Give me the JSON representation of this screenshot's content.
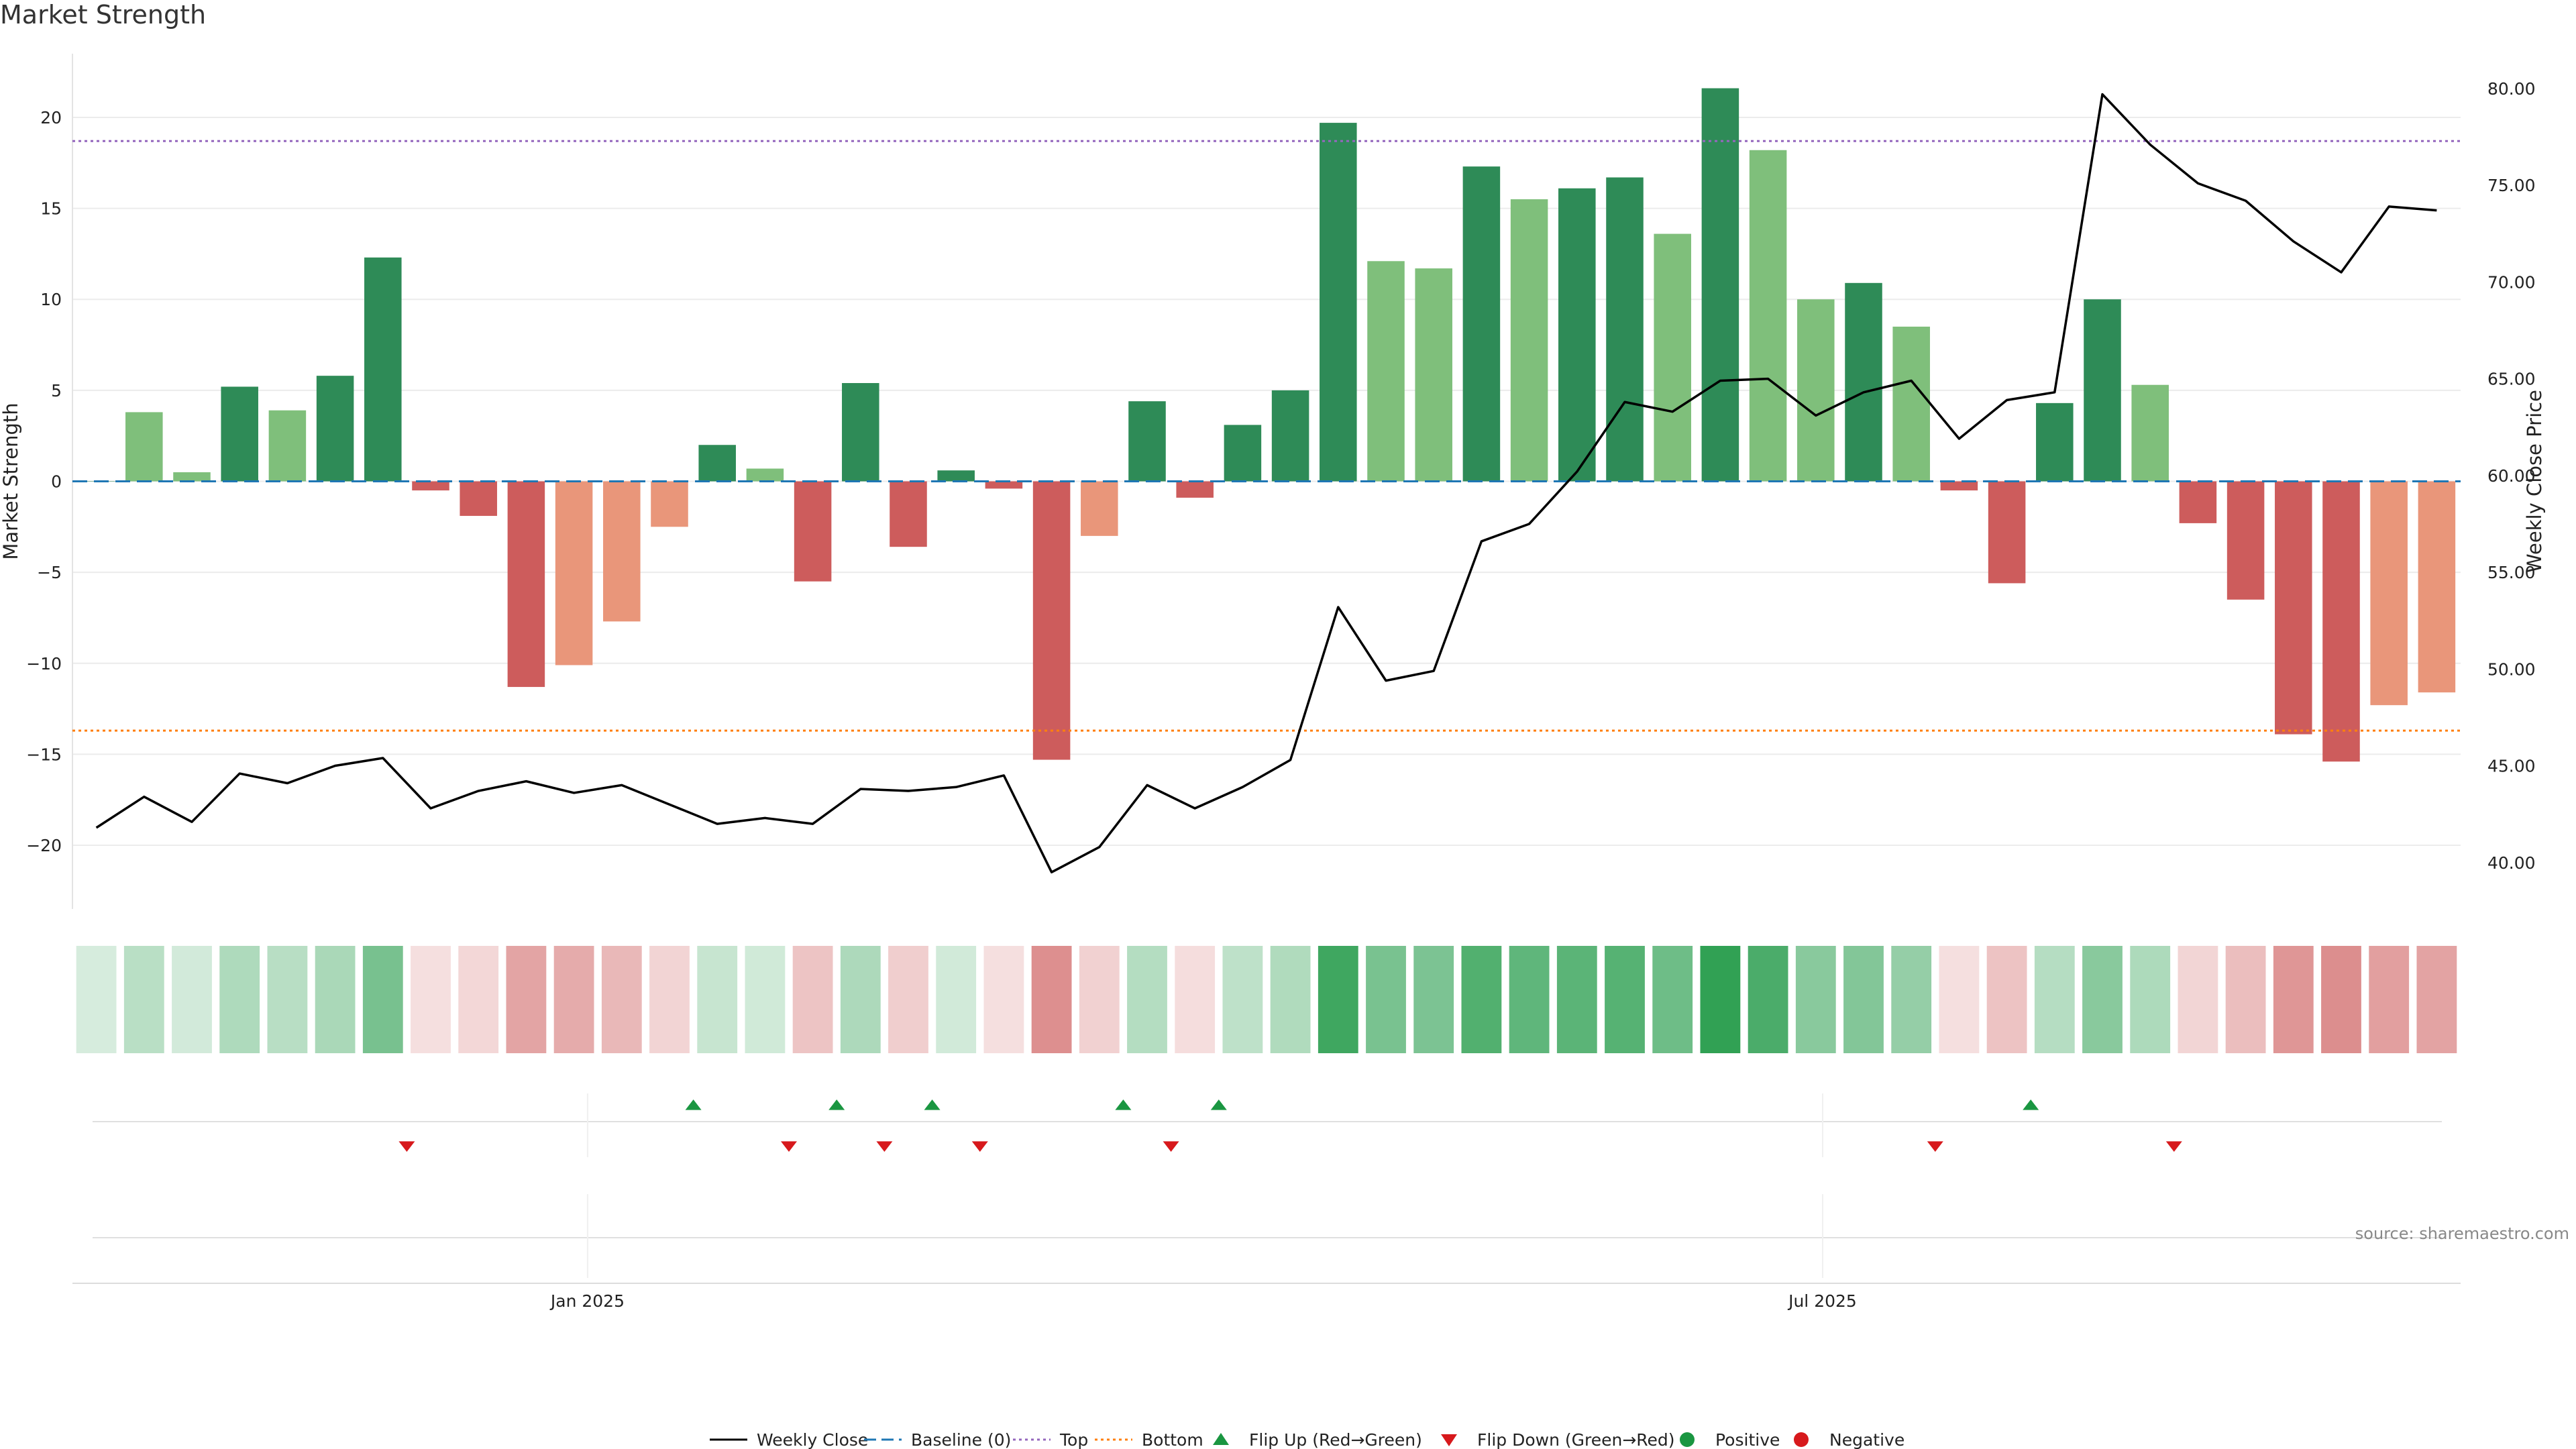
{
  "title": "Market Strength",
  "source_note": "source: sharemaestro.com",
  "colors": {
    "strong_pos": "#2e8b57",
    "weak_pos": "#7fbf7b",
    "strong_neg": "#cd5c5c",
    "weak_neg": "#e9967a",
    "close_line": "#000000",
    "baseline": "#1f77b4",
    "top": "#9467bd",
    "bottom": "#ff7f0e",
    "flip_up": "#1a9641",
    "flip_down": "#d7191c",
    "grid": "#ececec"
  },
  "legend": [
    {
      "key": "close",
      "label": "Weekly Close"
    },
    {
      "key": "baseline",
      "label": "Baseline (0)"
    },
    {
      "key": "top",
      "label": "Top"
    },
    {
      "key": "bottom",
      "label": "Bottom"
    },
    {
      "key": "flip_up",
      "label": "Flip Up (Red→Green)"
    },
    {
      "key": "flip_down",
      "label": "Flip Down (Green→Red)"
    },
    {
      "key": "positive",
      "label": "Positive"
    },
    {
      "key": "negative",
      "label": "Negative"
    }
  ],
  "chart_data": {
    "type": "bar",
    "title": "Market Strength",
    "ylabel": "Market Strength",
    "y2label": "Weekly Close Price",
    "ylim": [
      -23.5,
      23.5
    ],
    "y2lim": [
      37.6,
      81.8
    ],
    "yticks": [
      -20,
      -15,
      -10,
      -5,
      0,
      5,
      10,
      15,
      20
    ],
    "y2ticks": [
      "40.00",
      "45.00",
      "50.00",
      "55.00",
      "60.00",
      "65.00",
      "70.00",
      "75.00",
      "80.00"
    ],
    "x_start": "2024-10-21",
    "x_tick_labels": [
      "Jan 2025",
      "Jul 2025"
    ],
    "top_threshold": 18.7,
    "bottom_threshold": -13.7,
    "baseline": 0,
    "grid": true,
    "legend_position": "bottom-center",
    "series": [
      {
        "name": "Market Strength",
        "type": "bar",
        "values": [
          0,
          3.8,
          0.5,
          5.2,
          3.9,
          5.8,
          12.3,
          -0.5,
          -1.9,
          -11.3,
          -10.1,
          -7.7,
          -2.5,
          2.0,
          0.7,
          -5.5,
          5.4,
          -3.6,
          0.6,
          -0.4,
          -15.3,
          -3.0,
          4.4,
          -0.9,
          3.1,
          5.0,
          19.7,
          12.1,
          11.7,
          17.3,
          15.5,
          16.1,
          16.7,
          13.6,
          21.6,
          18.2,
          10.0,
          10.9,
          8.5,
          -0.5,
          -5.6,
          4.3,
          10.0,
          5.3,
          -2.3,
          -6.5,
          -13.9,
          -15.4,
          -12.3,
          -11.6
        ]
      },
      {
        "name": "Weekly Close",
        "type": "line",
        "axis": "right",
        "values": [
          41.8,
          43.4,
          42.1,
          44.6,
          44.1,
          45.0,
          45.4,
          42.8,
          43.7,
          44.2,
          43.6,
          44.0,
          43.0,
          42.0,
          42.3,
          42.0,
          43.8,
          43.7,
          43.9,
          44.5,
          39.5,
          40.8,
          44.0,
          42.8,
          43.9,
          45.3,
          53.2,
          49.4,
          49.9,
          56.6,
          57.5,
          60.2,
          63.8,
          63.3,
          64.9,
          65.0,
          63.1,
          64.3,
          64.9,
          61.9,
          63.9,
          64.3,
          79.7,
          77.1,
          75.1,
          74.2,
          72.1,
          70.5,
          73.9,
          73.7
        ]
      }
    ],
    "heat_strip": {
      "categories": [
        "strong_pos",
        "weak_pos",
        "weak_pos",
        "strong_pos",
        "weak_pos",
        "strong_pos",
        "strong_pos",
        "strong_neg",
        "strong_neg",
        "strong_neg",
        "weak_neg",
        "weak_neg",
        "weak_neg",
        "strong_pos",
        "weak_pos",
        "strong_neg",
        "strong_pos",
        "strong_neg",
        "strong_pos",
        "strong_neg",
        "strong_neg",
        "weak_neg",
        "strong_pos",
        "strong_neg",
        "strong_pos",
        "strong_pos",
        "strong_pos",
        "weak_pos",
        "weak_pos",
        "strong_pos",
        "weak_pos",
        "strong_pos",
        "strong_pos",
        "weak_pos",
        "strong_pos",
        "weak_pos",
        "weak_pos",
        "strong_pos",
        "weak_pos",
        "strong_neg",
        "strong_neg",
        "strong_pos",
        "strong_pos",
        "weak_pos",
        "strong_neg",
        "strong_neg",
        "strong_neg",
        "strong_neg",
        "weak_neg",
        "weak_neg"
      ]
    },
    "flip_up_weeks": [
      13,
      16,
      18,
      22,
      24,
      41
    ],
    "flip_down_weeks": [
      7,
      15,
      17,
      19,
      23,
      39,
      44
    ]
  }
}
